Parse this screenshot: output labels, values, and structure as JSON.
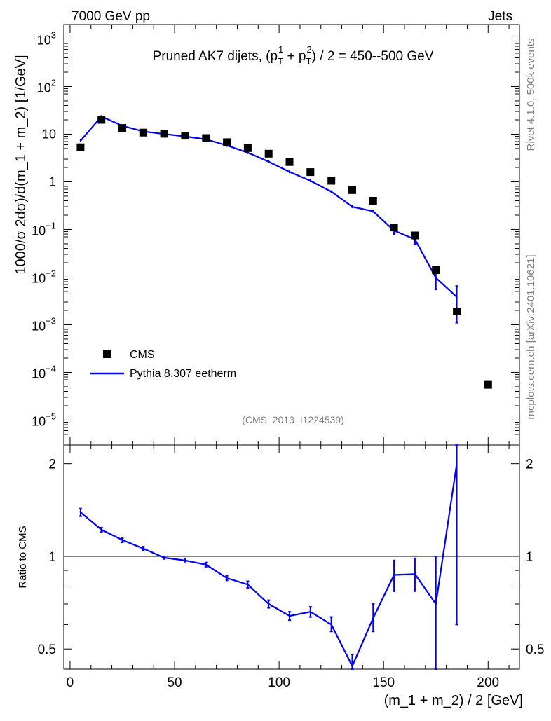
{
  "header": {
    "left": "7000 GeV pp",
    "right": "Jets"
  },
  "side_labels": {
    "rivet": "Rivet 4.1.0,  500k events",
    "mcplots": "mcplots.cern.ch [arXiv:2401.10621]"
  },
  "colors": {
    "mc": "#0000ee",
    "data": "#000000",
    "ref_gray": "#808080"
  },
  "chart_data": [
    {
      "type": "scatter",
      "name": "main",
      "title": "Pruned AK7 dijets, (pT1 + pT2) / 2 = 450--500 GeV",
      "title_parts": {
        "prefix": "Pruned AK7 dijets, (p",
        "sup1": "1",
        "sub1": "T",
        "mid": " + p",
        "sup2": "2",
        "sub2": "T",
        "suffix": ") / 2 = 450--500 GeV"
      },
      "ylabel": "1000/σ   2dσ)/d(m_1 + m_2) [1/GeV]",
      "yscale": "log",
      "ylim": [
        3e-06,
        2000
      ],
      "xlim": [
        -3,
        215
      ],
      "analysis_id": "(CMS_2013_I1224539)",
      "y_ticks": [
        {
          "v": 1000,
          "base": "10",
          "exp": "3",
          "label": ""
        },
        {
          "v": 100,
          "base": "10",
          "exp": "2",
          "label": ""
        },
        {
          "v": 10,
          "base": "",
          "exp": "",
          "label": "10"
        },
        {
          "v": 1,
          "base": "",
          "exp": "",
          "label": "1"
        },
        {
          "v": 0.1,
          "base": "10",
          "exp": "−1",
          "label": ""
        },
        {
          "v": 0.01,
          "base": "10",
          "exp": "−2",
          "label": ""
        },
        {
          "v": 0.001,
          "base": "10",
          "exp": "−3",
          "label": ""
        },
        {
          "v": 0.0001,
          "base": "10",
          "exp": "−4",
          "label": ""
        },
        {
          "v": 1e-05,
          "base": "10",
          "exp": "−5",
          "label": ""
        }
      ],
      "legend": {
        "position": "lower-left",
        "entries": [
          "CMS",
          "Pythia 8.307 eetherm"
        ]
      },
      "series": [
        {
          "name": "CMS",
          "style": "markers",
          "x": [
            5,
            15,
            25,
            35,
            45,
            55,
            65,
            75,
            85,
            95,
            105,
            115,
            125,
            135,
            145,
            155,
            165,
            175,
            185,
            200
          ],
          "y": [
            5.3,
            20,
            13.5,
            10.8,
            10.2,
            9.3,
            8.3,
            6.8,
            5.1,
            3.9,
            2.6,
            1.6,
            1.05,
            0.67,
            0.4,
            0.11,
            0.075,
            0.014,
            0.0019,
            5.5e-05
          ]
        },
        {
          "name": "Pythia 8.307 eetherm",
          "style": "line",
          "x": [
            5,
            15,
            25,
            35,
            45,
            55,
            65,
            75,
            85,
            95,
            105,
            115,
            125,
            135,
            145,
            155,
            165,
            175,
            185
          ],
          "y": [
            7.3,
            23.5,
            15,
            11.4,
            10.1,
            9.0,
            7.8,
            5.8,
            4.1,
            2.65,
            1.62,
            1.05,
            0.62,
            0.3,
            0.24,
            0.095,
            0.062,
            0.0097,
            0.0038
          ],
          "err_lo": [
            null,
            null,
            null,
            null,
            null,
            null,
            null,
            null,
            null,
            null,
            null,
            null,
            null,
            null,
            null,
            0.08,
            0.05,
            0.0055,
            0.0011
          ],
          "err_hi": [
            null,
            null,
            null,
            null,
            null,
            null,
            null,
            null,
            null,
            null,
            null,
            null,
            null,
            null,
            null,
            0.11,
            0.075,
            0.016,
            0.0065
          ]
        }
      ]
    },
    {
      "type": "line",
      "name": "ratio",
      "ylabel": "Ratio to CMS",
      "xlabel": "(m_1 + m_2) / 2 [GeV]",
      "yscale": "log",
      "ylim": [
        0.43,
        2.3
      ],
      "xlim": [
        -3,
        215
      ],
      "reference_line": 1,
      "x_ticks": [
        0,
        50,
        100,
        150,
        200
      ],
      "x_tick_labels": [
        "0",
        "50",
        "100",
        "150",
        "200"
      ],
      "y_ticks": [
        0.5,
        1,
        2
      ],
      "y_tick_labels": [
        "0.5",
        "1",
        "2"
      ],
      "series": [
        {
          "name": "Pythia 8.307 eetherm / CMS",
          "x": [
            5,
            15,
            25,
            35,
            45,
            55,
            65,
            75,
            85,
            95,
            105,
            115,
            125,
            135,
            145,
            155,
            165,
            175,
            185
          ],
          "y": [
            1.39,
            1.22,
            1.13,
            1.06,
            0.99,
            0.97,
            0.94,
            0.85,
            0.81,
            0.7,
            0.64,
            0.66,
            0.6,
            0.44,
            0.63,
            0.87,
            0.875,
            0.7,
            2.0
          ],
          "err_lo": [
            1.35,
            1.2,
            1.11,
            1.045,
            0.98,
            0.96,
            0.925,
            0.835,
            0.79,
            0.68,
            0.62,
            0.635,
            0.57,
            0.4,
            0.57,
            0.77,
            0.77,
            0.4,
            0.6
          ],
          "err_hi": [
            1.43,
            1.24,
            1.145,
            1.075,
            1.0,
            0.98,
            0.955,
            0.865,
            0.83,
            0.72,
            0.66,
            0.685,
            0.635,
            0.48,
            0.7,
            0.97,
            0.985,
            1.0,
            2.3
          ]
        }
      ]
    }
  ]
}
